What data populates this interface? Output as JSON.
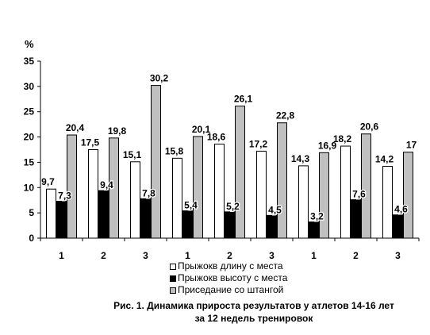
{
  "chart_data": {
    "type": "bar",
    "ylabel": "%",
    "ylim": [
      0,
      35
    ],
    "yticks": [
      0,
      5,
      10,
      15,
      20,
      25,
      30,
      35
    ],
    "categories": [
      "1",
      "2",
      "3",
      "1",
      "2",
      "3",
      "1",
      "2",
      "3"
    ],
    "series": [
      {
        "name": "Прыжокв длину с места",
        "color": "#ffffff",
        "values": [
          9.7,
          17.5,
          15.1,
          15.8,
          18.6,
          17.2,
          14.3,
          18.2,
          14.2
        ],
        "labels": [
          "9,7",
          "17,5",
          "15,1",
          "15,8",
          "18,6",
          "17,2",
          "14,3",
          "18,2",
          "14,2"
        ]
      },
      {
        "name": "Прыжокв высоту с места",
        "color": "#000000",
        "values": [
          7.3,
          9.4,
          7.8,
          5.4,
          5.2,
          4.5,
          3.2,
          7.6,
          4.6
        ],
        "labels": [
          "7,3",
          "9,4",
          "7,8",
          "5,4",
          "5,2",
          "4,5",
          "3,2",
          "7,6",
          "4,6"
        ]
      },
      {
        "name": "Приседание со штангой",
        "color": "#c0c0c0",
        "values": [
          20.4,
          19.8,
          30.2,
          20.1,
          26.1,
          22.8,
          16.9,
          20.6,
          17.0
        ],
        "labels": [
          "20,4",
          "19,8",
          "30,2",
          "20,1",
          "26,1",
          "22,8",
          "16,9",
          "20,6",
          "17"
        ]
      }
    ],
    "legend_position": "bottom",
    "grid": false
  },
  "caption": {
    "line1": "Рис. 1.  Динамика прироста результатов у атлетов 14-16 лет",
    "line2": "за 12 недель тренировок"
  }
}
